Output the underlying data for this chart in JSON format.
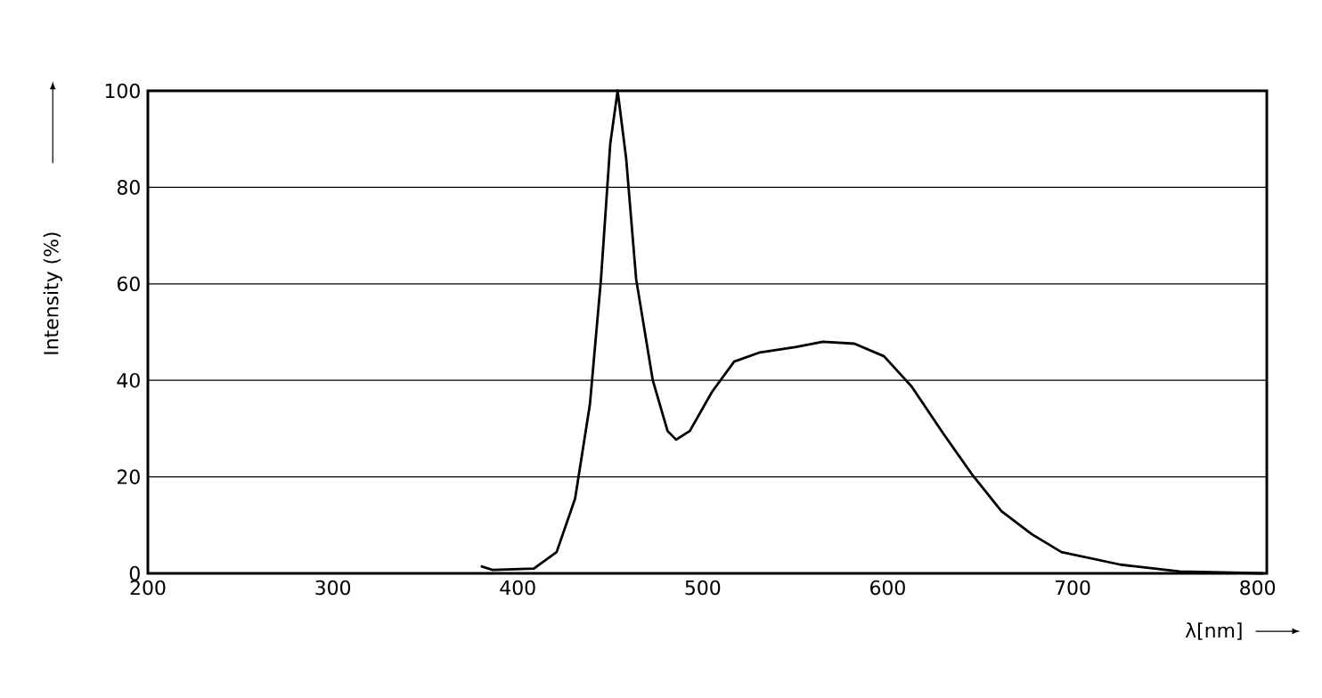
{
  "chart_data": {
    "type": "line",
    "xlabel": "λ[nm]",
    "ylabel": "Intensity (%)",
    "x": [
      380,
      386.5,
      408.7,
      421,
      431,
      439,
      445,
      450,
      454,
      458.6,
      464,
      473,
      481,
      485.6,
      493,
      505,
      517,
      531,
      550,
      565,
      582,
      598,
      613,
      630,
      646,
      661.5,
      678,
      694,
      726,
      758,
      803
    ],
    "values": [
      1.5,
      0.7,
      1,
      4.4,
      15.5,
      35,
      61,
      89,
      100,
      86,
      61,
      40,
      29.5,
      27.7,
      29.5,
      37.6,
      43.9,
      45.8,
      46.9,
      48,
      47.6,
      45,
      38.7,
      29,
      20.3,
      12.9,
      8.1,
      4.4,
      1.8,
      0.4,
      0
    ],
    "color": "#000000",
    "xlim": [
      200,
      805
    ],
    "ylim": [
      0,
      100
    ],
    "xticks": [
      200,
      300,
      400,
      500,
      600,
      700,
      800
    ],
    "yticks": [
      0,
      20,
      40,
      60,
      80,
      100
    ],
    "grid": "y",
    "marker": "none",
    "line_style": "solid"
  }
}
